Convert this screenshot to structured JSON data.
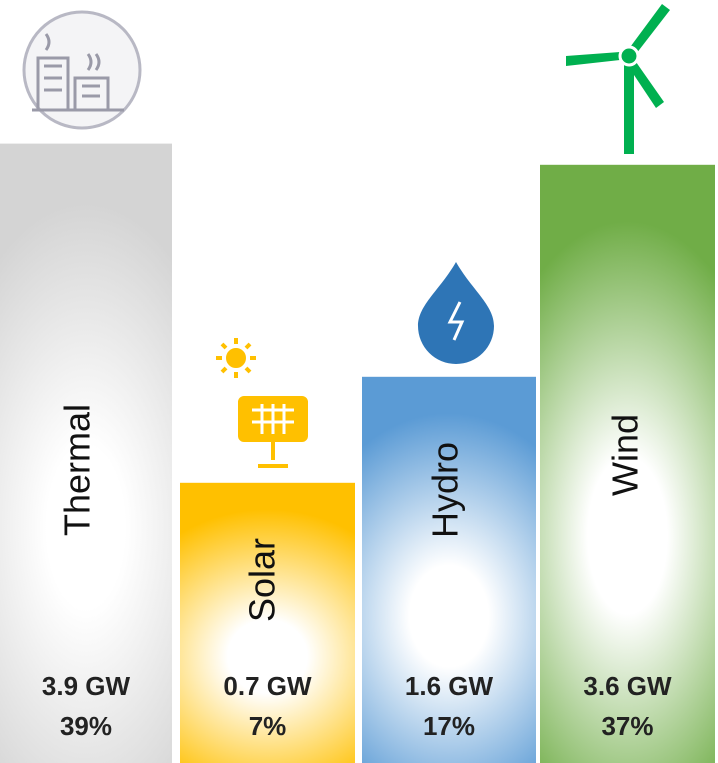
{
  "chart_data": {
    "type": "bar",
    "categories": [
      "Thermal",
      "Solar",
      "Hydro",
      "Wind"
    ],
    "values": [
      39,
      7,
      17,
      37
    ],
    "value_labels": [
      "39%",
      "7%",
      "17%",
      "37%"
    ],
    "capacity_values": [
      3.9,
      0.7,
      1.6,
      3.6
    ],
    "capacity_labels": [
      "3.9 GW",
      "0.7 GW",
      "1.6 GW",
      "3.6 GW"
    ],
    "colors": [
      "#d4d4d4",
      "#ffc000",
      "#5b9bd5",
      "#70ad47"
    ]
  }
}
